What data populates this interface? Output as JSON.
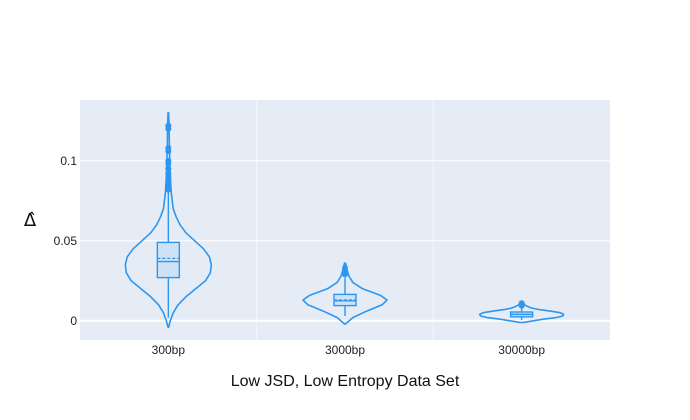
{
  "chart_data": {
    "type": "violin",
    "xlabel": "Low JSD, Low Entropy Data Set",
    "ylabel": "Δ̂",
    "ylim": [
      -0.012,
      0.138
    ],
    "yticks": [
      0,
      0.05,
      0.1
    ],
    "ytick_labels": [
      "0",
      "0.05",
      "0.1"
    ],
    "grid": true,
    "colors": {
      "plot_bg": "#e5ecf6",
      "grid": "#ffffff",
      "series": "#2e96f0"
    },
    "categories": [
      "300bp",
      "3000bp",
      "30000bp"
    ],
    "series": [
      {
        "category": "300bp",
        "min": -0.004,
        "max": 0.13,
        "q1": 0.027,
        "median": 0.037,
        "mean": 0.039,
        "q3": 0.049,
        "lower_whisker": 0.002,
        "upper_whisker": 0.081,
        "outliers": [
          0.082,
          0.083,
          0.085,
          0.086,
          0.088,
          0.09,
          0.092,
          0.095,
          0.098,
          0.1,
          0.106,
          0.108,
          0.12,
          0.122
        ],
        "density": [
          [
            -0.004,
            0.3
          ],
          [
            0,
            2
          ],
          [
            0.005,
            5
          ],
          [
            0.01,
            10
          ],
          [
            0.015,
            18
          ],
          [
            0.02,
            28
          ],
          [
            0.025,
            38
          ],
          [
            0.03,
            43
          ],
          [
            0.035,
            44
          ],
          [
            0.04,
            42
          ],
          [
            0.045,
            36
          ],
          [
            0.05,
            27
          ],
          [
            0.055,
            18
          ],
          [
            0.06,
            12
          ],
          [
            0.065,
            8
          ],
          [
            0.07,
            5
          ],
          [
            0.08,
            3
          ],
          [
            0.09,
            2
          ],
          [
            0.1,
            1.5
          ],
          [
            0.11,
            1
          ],
          [
            0.12,
            0.8
          ],
          [
            0.13,
            0.3
          ]
        ]
      },
      {
        "category": "3000bp",
        "min": -0.002,
        "max": 0.036,
        "q1": 0.0095,
        "median": 0.0125,
        "mean": 0.013,
        "q3": 0.0165,
        "lower_whisker": 0.003,
        "upper_whisker": 0.027,
        "outliers": [
          0.029,
          0.031,
          0.033
        ],
        "density": [
          [
            -0.002,
            0.5
          ],
          [
            0.002,
            8
          ],
          [
            0.006,
            22
          ],
          [
            0.01,
            38
          ],
          [
            0.013,
            43
          ],
          [
            0.016,
            36
          ],
          [
            0.02,
            18
          ],
          [
            0.024,
            8
          ],
          [
            0.028,
            4
          ],
          [
            0.032,
            2
          ],
          [
            0.036,
            0.5
          ]
        ]
      },
      {
        "category": "30000bp",
        "min": -0.001,
        "max": 0.012,
        "q1": 0.0025,
        "median": 0.004,
        "mean": 0.0042,
        "q3": 0.0055,
        "lower_whisker": 0.0005,
        "upper_whisker": 0.0085,
        "outliers": [
          0.0095,
          0.011
        ],
        "density": [
          [
            -0.001,
            2
          ],
          [
            0.001,
            22
          ],
          [
            0.002,
            35
          ],
          [
            0.003,
            42
          ],
          [
            0.004,
            43
          ],
          [
            0.005,
            40
          ],
          [
            0.006,
            30
          ],
          [
            0.007,
            18
          ],
          [
            0.008,
            10
          ],
          [
            0.009,
            6
          ],
          [
            0.01,
            3
          ],
          [
            0.011,
            2
          ],
          [
            0.012,
            0.5
          ]
        ]
      }
    ]
  }
}
